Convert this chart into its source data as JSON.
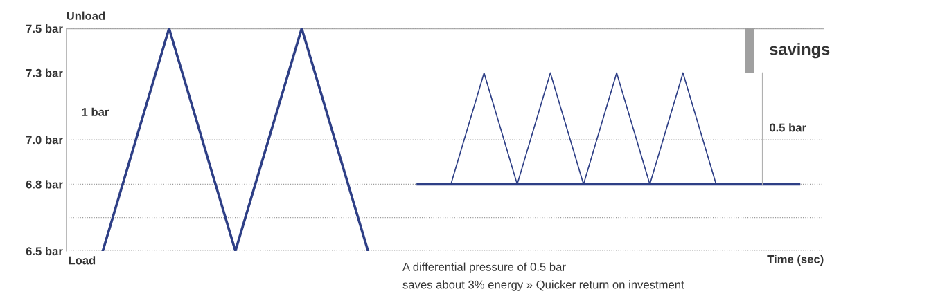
{
  "chart_data": {
    "type": "line",
    "xlabel": "Time (sec)",
    "categories": [
      null,
      null,
      null,
      null,
      null,
      null,
      null,
      null,
      null,
      null,
      null,
      null,
      null,
      null,
      null,
      null,
      null,
      null,
      null,
      null,
      null,
      null,
      null,
      null,
      null,
      null,
      null,
      null,
      null,
      null,
      null,
      null,
      null,
      null,
      null,
      null,
      null,
      null,
      null,
      null,
      null,
      null,
      null
    ],
    "series": [
      {
        "color": "#2e3f86",
        "values": [
          6.5,
          6.75,
          7.0,
          7.25,
          7.5,
          7.25,
          7.0,
          6.75,
          6.5,
          6.75,
          7.0,
          7.25,
          7.5,
          7.25,
          7.0,
          6.75,
          6.5,
          null,
          null,
          null,
          null,
          null,
          null,
          null,
          null,
          null,
          null,
          null,
          null,
          null,
          null,
          null,
          null,
          null,
          null,
          null,
          null,
          null,
          null,
          null,
          null,
          null,
          null
        ]
      },
      {
        "color": "#2e3f86",
        "values": [
          null,
          null,
          null,
          null,
          null,
          null,
          null,
          null,
          null,
          null,
          null,
          null,
          null,
          null,
          null,
          null,
          null,
          null,
          null,
          null,
          null,
          6.8,
          7.05,
          7.3,
          7.05,
          6.8,
          7.05,
          7.3,
          7.05,
          6.8,
          7.05,
          7.3,
          7.05,
          6.8,
          7.05,
          7.3,
          7.05,
          6.8,
          null,
          null,
          null,
          null,
          null
        ]
      },
      {
        "color": "#2e3f86",
        "values": [
          null,
          null,
          null,
          null,
          null,
          null,
          null,
          null,
          null,
          null,
          null,
          null,
          null,
          null,
          null,
          null,
          null,
          null,
          null,
          6.8,
          6.8,
          6.8,
          6.8,
          6.8,
          6.8,
          6.8,
          6.8,
          6.8,
          6.8,
          6.8,
          6.8,
          6.8,
          6.8,
          6.8,
          6.8,
          6.8,
          6.8,
          6.8,
          6.8,
          6.8,
          6.8,
          6.8,
          6.8
        ]
      },
      {
        "type": "bar",
        "color": "#a0a0a0",
        "base": [
          null,
          null,
          null,
          null,
          null,
          null,
          null,
          null,
          null,
          null,
          null,
          null,
          null,
          null,
          null,
          null,
          null,
          null,
          null,
          null,
          null,
          null,
          null,
          null,
          null,
          null,
          null,
          null,
          null,
          null,
          null,
          null,
          null,
          null,
          null,
          null,
          null,
          null,
          null,
          7.3,
          null,
          null,
          null
        ],
        "values": [
          null,
          null,
          null,
          null,
          null,
          null,
          null,
          null,
          null,
          null,
          null,
          null,
          null,
          null,
          null,
          null,
          null,
          null,
          null,
          null,
          null,
          null,
          null,
          null,
          null,
          null,
          null,
          null,
          null,
          null,
          null,
          null,
          null,
          null,
          null,
          null,
          null,
          null,
          null,
          0.2,
          null,
          null,
          null
        ]
      }
    ],
    "ylim": [
      6.5,
      7.5
    ],
    "yticks": [
      {
        "value": 6.5,
        "label": "6.5 bar"
      },
      {
        "value": 6.65,
        "label": null
      },
      {
        "value": 6.8,
        "label": "6.8 bar"
      },
      {
        "value": 7.0,
        "label": "7.0 bar"
      },
      {
        "value": 7.3,
        "label": "7.3 bar"
      },
      {
        "value": 7.5,
        "label": "7.5 bar"
      }
    ],
    "grid": "y",
    "tick_labels": "y",
    "marker": "none",
    "line_style": "solid",
    "ref_lines": [
      {
        "axis": "y",
        "value": 7.5,
        "color": "#b0b0b0",
        "line_style": "solid"
      }
    ],
    "annotations": [
      "Unload",
      "Load",
      "1 bar",
      "0.5 bar",
      "savings",
      "A differential pressure of 0.5 bar",
      "saves about 3% energy » Quicker return on investment"
    ]
  }
}
